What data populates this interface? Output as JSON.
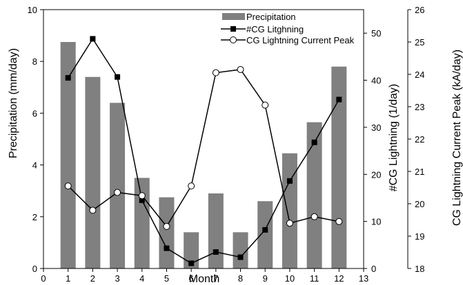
{
  "chart_data": {
    "type": "bar",
    "xlabel": "Month",
    "x_ticks": [
      0,
      1,
      2,
      3,
      4,
      5,
      6,
      7,
      8,
      9,
      10,
      11,
      12,
      13
    ],
    "xlim": [
      0,
      13
    ],
    "grid": false,
    "legend_position": "top-right",
    "categories": [
      1,
      2,
      3,
      4,
      5,
      6,
      7,
      8,
      9,
      10,
      11,
      12
    ],
    "axes": {
      "left": {
        "label": "Precipitation (mm/day)",
        "ylim": [
          0,
          10
        ],
        "ticks": [
          0,
          2,
          4,
          6,
          8,
          10
        ]
      },
      "right1": {
        "label": "#CG Lightning (1/day)",
        "ylim": [
          0,
          55
        ],
        "ticks": [
          0,
          10,
          20,
          30,
          40,
          50
        ]
      },
      "right2": {
        "label": "CG Lightning Current Peak (kA/day)",
        "ylim": [
          18,
          26
        ],
        "ticks": [
          18,
          19,
          20,
          21,
          22,
          23,
          24,
          25,
          26
        ]
      }
    },
    "series": [
      {
        "name": "Precipitation",
        "type": "bar",
        "axis": "left",
        "color": "#808080",
        "values": [
          8.75,
          7.4,
          6.4,
          3.5,
          2.75,
          1.4,
          2.9,
          1.4,
          2.6,
          4.45,
          5.65,
          7.8
        ]
      },
      {
        "name": "#CG Litghning",
        "type": "line",
        "axis": "right1",
        "marker": "filled-square",
        "color": "#000000",
        "values": [
          40.5,
          48.8,
          40.7,
          14.5,
          4.3,
          1.1,
          3.5,
          2.4,
          8.2,
          18.6,
          26.8,
          35.9
        ]
      },
      {
        "name": "CG Lightning Current Peak",
        "type": "line",
        "axis": "right2",
        "marker": "open-circle",
        "color": "#000000",
        "values": [
          20.55,
          19.8,
          20.35,
          20.25,
          19.3,
          20.55,
          24.05,
          24.15,
          23.05,
          19.4,
          19.6,
          19.45
        ]
      }
    ]
  }
}
